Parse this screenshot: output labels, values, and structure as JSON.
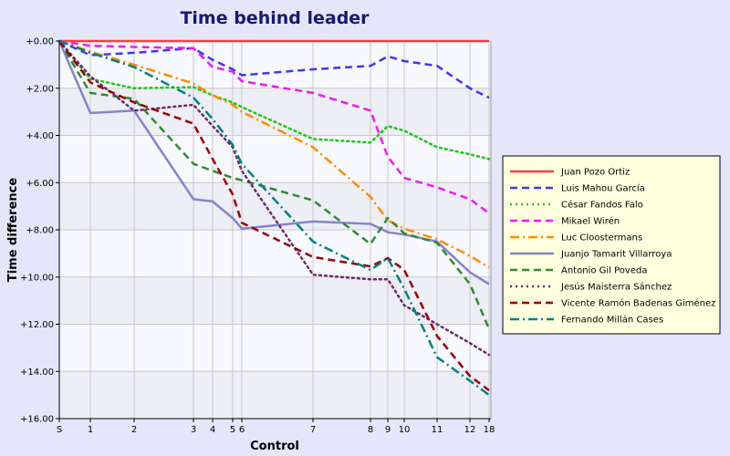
{
  "chart_data": {
    "type": "line",
    "title": "Time behind leader",
    "xlabel": "Control",
    "ylabel": "Time difference",
    "x_ticks": [
      "S",
      "1",
      "2",
      "3",
      "4",
      "5",
      "6",
      "7",
      "8",
      "9",
      "10",
      "11",
      "12",
      "18"
    ],
    "y_ticks": [
      "+0.00",
      "+2.00",
      "+4.00",
      "+6.00",
      "+8.00",
      "+10.00",
      "+12.00",
      "+14.00",
      "+16.00"
    ],
    "ylim": [
      0,
      16
    ],
    "grid": true,
    "legend_position": "right",
    "series": [
      {
        "name": "Juan Pozo Ortiz",
        "color": "#ff3b3b",
        "dash": "solid",
        "values": [
          0,
          0,
          0,
          0,
          0,
          0,
          0,
          0,
          0,
          0,
          0,
          0,
          0,
          0
        ]
      },
      {
        "name": "Luis Mahou García",
        "color": "#3a3aee",
        "dash": "dash",
        "values": [
          0,
          0.6,
          0.5,
          0.3,
          0.8,
          1.2,
          1.45,
          1.2,
          1.05,
          0.65,
          0.85,
          1.05,
          2.0,
          2.4
        ]
      },
      {
        "name": "César Fandos Falo",
        "color": "#19c919",
        "dash": "dot",
        "values": [
          0,
          1.6,
          2.0,
          1.95,
          2.3,
          2.6,
          2.8,
          4.15,
          4.3,
          3.6,
          3.8,
          4.5,
          4.8,
          5.0
        ]
      },
      {
        "name": "Mikael Wirén",
        "color": "#ee1bee",
        "dash": "dash",
        "values": [
          0,
          0.2,
          0.25,
          0.3,
          1.1,
          1.3,
          1.7,
          2.2,
          2.95,
          4.9,
          5.8,
          6.2,
          6.7,
          7.3
        ]
      },
      {
        "name": "Luc Cloostermans",
        "color": "#ff8c00",
        "dash": "dashdot",
        "values": [
          0,
          0.45,
          1.0,
          1.8,
          2.3,
          2.7,
          3.0,
          4.5,
          6.6,
          7.6,
          7.95,
          8.4,
          9.1,
          9.6
        ]
      },
      {
        "name": "Juanjo Tamarit Villarroya",
        "color": "#8484cd",
        "dash": "solid",
        "values": [
          0,
          3.05,
          2.95,
          6.7,
          6.8,
          7.5,
          7.95,
          7.65,
          7.75,
          8.1,
          8.2,
          8.5,
          9.8,
          10.3
        ]
      },
      {
        "name": "Antonio Gil Poveda",
        "color": "#2e8b2e",
        "dash": "dash",
        "values": [
          0,
          2.2,
          2.45,
          5.2,
          5.5,
          5.8,
          5.9,
          6.75,
          8.6,
          7.5,
          8.15,
          8.55,
          10.3,
          12.2
        ]
      },
      {
        "name": "Jesús Maisterra Sánchez",
        "color": "#6b2b6b",
        "dash": "dot",
        "values": [
          0,
          1.5,
          2.95,
          2.7,
          3.6,
          4.5,
          5.5,
          9.9,
          10.1,
          10.1,
          11.2,
          12.0,
          12.8,
          13.3
        ]
      },
      {
        "name": "Vicente Ramón Badenas Giménez",
        "color": "#990000",
        "dash": "dash",
        "values": [
          0,
          1.75,
          2.6,
          3.5,
          5.0,
          6.5,
          7.7,
          9.15,
          9.55,
          9.2,
          9.7,
          12.5,
          14.2,
          14.8
        ]
      },
      {
        "name": "Fernando Millán Cases",
        "color": "#008080",
        "dash": "dashdot",
        "values": [
          0,
          0.5,
          1.1,
          2.4,
          3.3,
          4.4,
          5.2,
          8.5,
          9.7,
          9.2,
          10.5,
          13.4,
          14.4,
          15.0
        ]
      }
    ]
  }
}
